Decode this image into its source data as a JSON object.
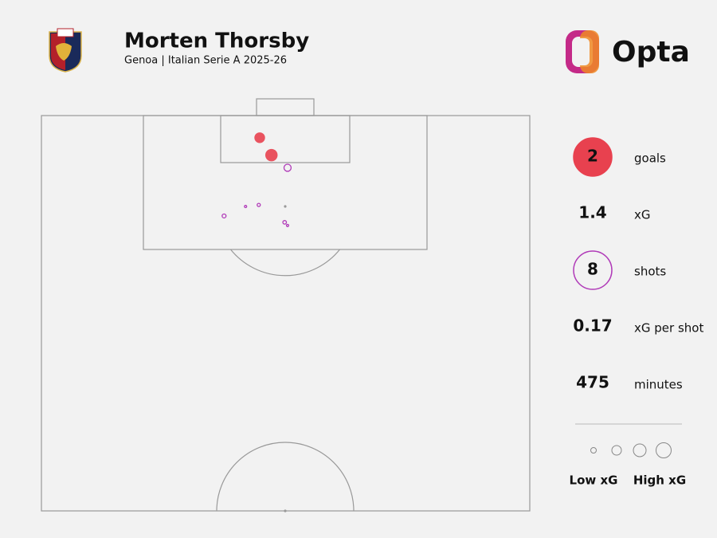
{
  "chart_data": {
    "type": "scatter",
    "title": "Morten Thorsby",
    "subtitle": "Genoa | Italian Serie A 2025-26",
    "brand": "Opta",
    "xlim": [
      0,
      100
    ],
    "ylim": [
      50,
      100
    ],
    "series": [
      {
        "color": "#e8414f",
        "filled": true,
        "x": [
          44.7,
          47.1
        ],
        "values": [
          97.2,
          95.0
        ],
        "sizes": [
          0.45,
          0.6
        ]
      },
      {
        "color": "#b03ab8",
        "filled": false,
        "x": [
          50.4,
          37.4,
          41.8,
          44.5,
          49.8,
          50.4
        ],
        "values": [
          93.4,
          87.3,
          88.5,
          88.7,
          86.5,
          86.1
        ],
        "sizes": [
          0.2,
          0.06,
          0.02,
          0.04,
          0.05,
          0.02
        ]
      }
    ],
    "stats": [
      {
        "value": 2,
        "label": "goals",
        "badge": "#e8414f"
      },
      {
        "value": 1.4,
        "label": "xG"
      },
      {
        "value": 8,
        "label": "shots",
        "badge": "#b03ab8"
      },
      {
        "value": 0.17,
        "label": "xG per shot"
      },
      {
        "value": 475,
        "label": "minutes"
      }
    ],
    "size_legend": {
      "low": "Low xG",
      "high": "High xG"
    }
  }
}
